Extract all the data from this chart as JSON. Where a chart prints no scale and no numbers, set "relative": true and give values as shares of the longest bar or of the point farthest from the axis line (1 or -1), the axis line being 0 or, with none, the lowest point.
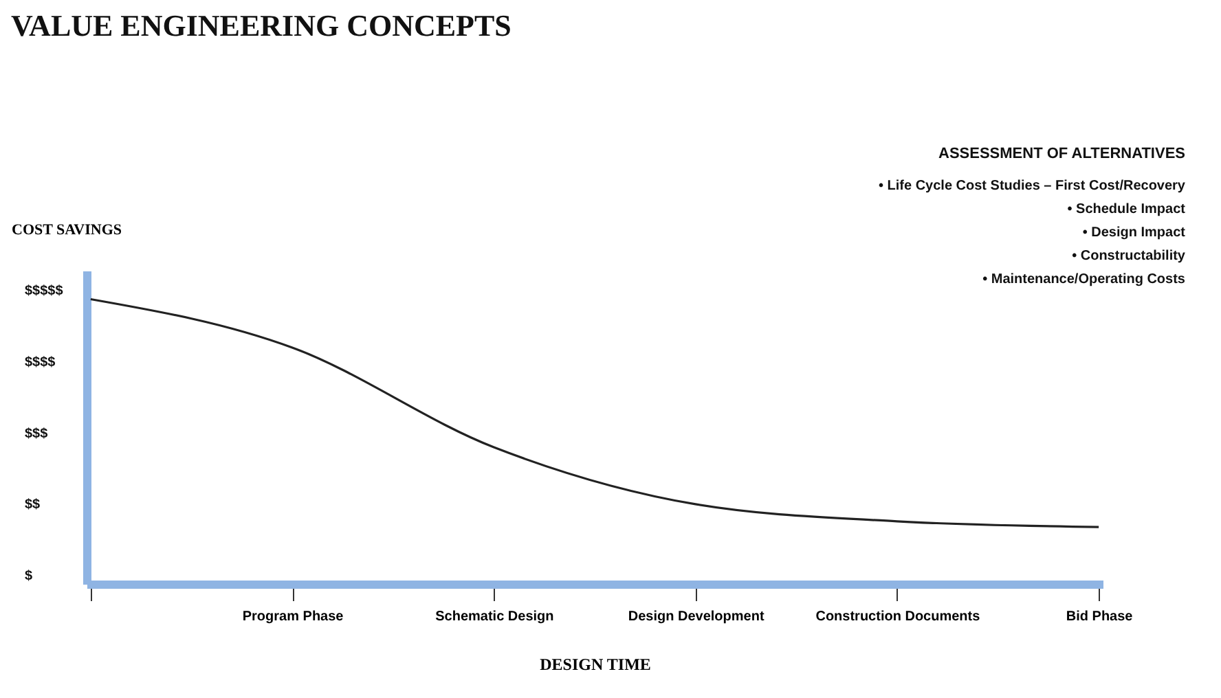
{
  "chart_data": {
    "type": "line",
    "relative": true,
    "title": "VALUE ENGINEERING CONCEPTS",
    "xlabel": "DESIGN TIME",
    "ylabel": "COST SAVINGS",
    "annotations": [
      "ASSESSMENT OF ALTERNATIVES",
      "•  Life Cycle Cost Studies – First Cost/Recovery",
      "•  Schedule Impact",
      "•  Design Impact",
      "•  Constructability",
      "•  Maintenance/Operating Costs",
      "$",
      "$$",
      "$$$",
      "$$$$",
      "$$$$$"
    ],
    "categories": [
      null,
      "Program Phase",
      "Schematic Design",
      "Design Development",
      "Construction Documents",
      "Bid Phase"
    ],
    "series": [
      {
        "color": "#222222",
        "values": [
          1.0,
          0.83,
          0.48,
          0.28,
          0.22,
          0.2
        ]
      }
    ],
    "grid": false,
    "marker": "none",
    "line_style": "solid"
  }
}
